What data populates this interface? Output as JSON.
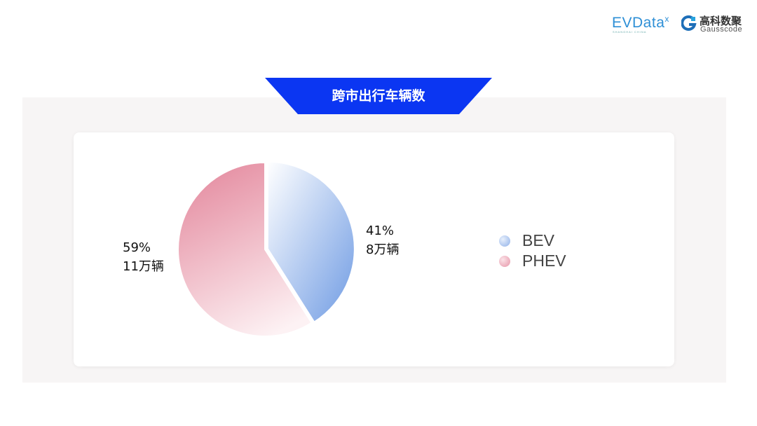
{
  "header": {
    "logo_evdata": "EVData",
    "logo_evdata_sub": "SHANGHAI CHINA",
    "logo_gauss_cn": "高科数聚",
    "logo_gauss_en": "Gausscode"
  },
  "title": "跨市出行车辆数",
  "chart_data": {
    "type": "pie",
    "title": "跨市出行车辆数",
    "categories": [
      "BEV",
      "PHEV"
    ],
    "values": [
      41,
      59
    ],
    "units": "%",
    "data_labels": [
      {
        "pct": "41%",
        "count": "8万辆"
      },
      {
        "pct": "59%",
        "count": "11万辆"
      }
    ],
    "legend": "right",
    "colors": {
      "BEV": [
        "#ffffff",
        "#6f9be3"
      ],
      "PHEV": [
        "#e58ea2",
        "#fdf2f4"
      ]
    }
  }
}
